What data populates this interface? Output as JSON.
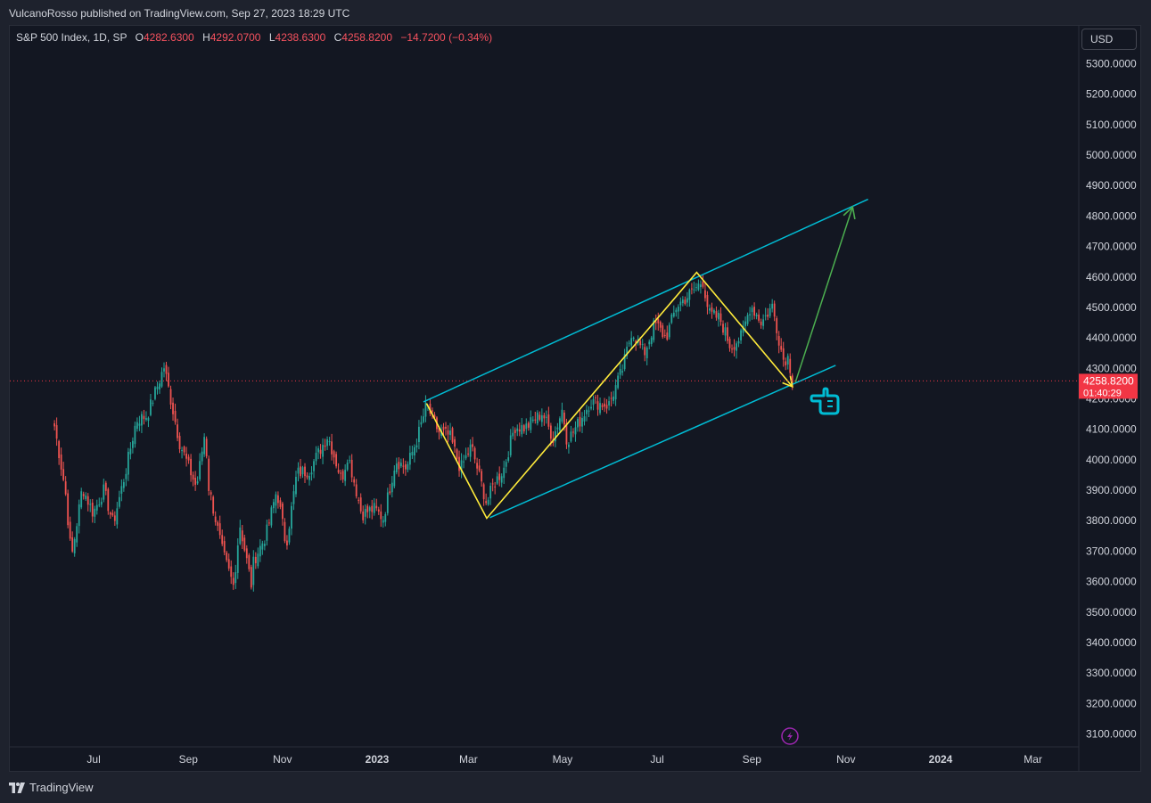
{
  "header": {
    "publish_line": "VulcanoRosso published on TradingView.com, Sep 27, 2023 18:29 UTC"
  },
  "legend": {
    "symbol": "S&P 500 Index, 1D, SP",
    "o_label": "O",
    "o_value": "4282.6300",
    "h_label": "H",
    "h_value": "4292.0700",
    "l_label": "L",
    "l_value": "4238.6300",
    "c_label": "C",
    "c_value": "4258.8200",
    "change": "−14.7200 (−0.34%)"
  },
  "currency": "USD",
  "footer": {
    "brand": "TradingView"
  },
  "colors": {
    "up": "#26a69a",
    "down": "#ef5350",
    "channel": "#00bcd4",
    "zigzag": "#ffeb3b",
    "projection": "#4caf50",
    "price_tag": "#f23645",
    "hand_icon": "#00bcd4",
    "flash_icon": "#9c27b0"
  },
  "icons": [
    "hand-pointing-icon",
    "flash-icon",
    "tradingview-logo-icon"
  ],
  "chart_data": {
    "type": "candlestick",
    "title": "S&P 500 Index, 1D, SP",
    "y_range": [
      3050,
      5350
    ],
    "y_ticks": [
      "5300.0000",
      "5200.0000",
      "5100.0000",
      "5000.0000",
      "4900.0000",
      "4800.0000",
      "4700.0000",
      "4600.0000",
      "4500.0000",
      "4400.0000",
      "4300.0000",
      "4200.0000",
      "4100.0000",
      "4000.0000",
      "3900.0000",
      "3800.0000",
      "3700.0000",
      "3600.0000",
      "3500.0000",
      "3400.0000",
      "3300.0000",
      "3200.0000",
      "3100.0000"
    ],
    "x_ticks": [
      {
        "label": "Jul",
        "t": 2022.497
      },
      {
        "label": "Sep",
        "t": 2022.665
      },
      {
        "label": "Nov",
        "t": 2022.832
      },
      {
        "label": "2023",
        "t": 2023.0
      },
      {
        "label": "Mar",
        "t": 2023.162
      },
      {
        "label": "May",
        "t": 2023.329
      },
      {
        "label": "Jul",
        "t": 2023.497
      },
      {
        "label": "Sep",
        "t": 2023.665
      },
      {
        "label": "Nov",
        "t": 2023.832
      },
      {
        "label": "2024",
        "t": 2024.0
      },
      {
        "label": "Mar",
        "t": 2024.164
      }
    ],
    "last_price": {
      "value": 4258.82,
      "label": "4258.8200",
      "countdown": "01:40:29"
    },
    "close_path": [
      [
        "2022-06-06",
        4110
      ],
      [
        "2022-06-13",
        3900
      ],
      [
        "2022-06-17",
        3675
      ],
      [
        "2022-06-24",
        3910
      ],
      [
        "2022-07-01",
        3825
      ],
      [
        "2022-07-08",
        3900
      ],
      [
        "2022-07-14",
        3790
      ],
      [
        "2022-07-22",
        3960
      ],
      [
        "2022-07-29",
        4130
      ],
      [
        "2022-08-05",
        4145
      ],
      [
        "2022-08-16",
        4305
      ],
      [
        "2022-08-26",
        4057
      ],
      [
        "2022-09-06",
        3908
      ],
      [
        "2022-09-12",
        4110
      ],
      [
        "2022-09-13",
        3932
      ],
      [
        "2022-09-23",
        3693
      ],
      [
        "2022-09-30",
        3585
      ],
      [
        "2022-10-04",
        3790
      ],
      [
        "2022-10-12",
        3577
      ],
      [
        "2022-10-13",
        3669
      ],
      [
        "2022-10-21",
        3752
      ],
      [
        "2022-10-28",
        3901
      ],
      [
        "2022-11-03",
        3719
      ],
      [
        "2022-11-10",
        3956
      ],
      [
        "2022-11-18",
        3965
      ],
      [
        "2022-11-30",
        4080
      ],
      [
        "2022-12-09",
        3934
      ],
      [
        "2022-12-13",
        4019
      ],
      [
        "2022-12-22",
        3822
      ],
      [
        "2022-12-30",
        3839
      ],
      [
        "2023-01-05",
        3808
      ],
      [
        "2023-01-13",
        3999
      ],
      [
        "2023-01-20",
        3972
      ],
      [
        "2023-01-27",
        4070
      ],
      [
        "2023-02-02",
        4179
      ],
      [
        "2023-02-10",
        4090
      ],
      [
        "2023-02-17",
        4079
      ],
      [
        "2023-02-24",
        3970
      ],
      [
        "2023-03-03",
        4045
      ],
      [
        "2023-03-13",
        3855
      ],
      [
        "2023-03-17",
        3916
      ],
      [
        "2023-03-24",
        3970
      ],
      [
        "2023-03-31",
        4109
      ],
      [
        "2023-04-07",
        4105
      ],
      [
        "2023-04-18",
        4154
      ],
      [
        "2023-04-25",
        4071
      ],
      [
        "2023-05-01",
        4167
      ],
      [
        "2023-05-04",
        4061
      ],
      [
        "2023-05-12",
        4124
      ],
      [
        "2023-05-19",
        4191
      ],
      [
        "2023-05-31",
        4179
      ],
      [
        "2023-06-09",
        4298
      ],
      [
        "2023-06-15",
        4425
      ],
      [
        "2023-06-23",
        4348
      ],
      [
        "2023-06-30",
        4450
      ],
      [
        "2023-07-07",
        4398
      ],
      [
        "2023-07-14",
        4505
      ],
      [
        "2023-07-21",
        4536
      ],
      [
        "2023-07-31",
        4588
      ],
      [
        "2023-08-04",
        4478
      ],
      [
        "2023-08-11",
        4464
      ],
      [
        "2023-08-18",
        4370
      ],
      [
        "2023-08-25",
        4405
      ],
      [
        "2023-08-31",
        4508
      ],
      [
        "2023-09-07",
        4451
      ],
      [
        "2023-09-14",
        4505
      ],
      [
        "2023-09-21",
        4330
      ],
      [
        "2023-09-25",
        4337
      ],
      [
        "2023-09-26",
        4273
      ],
      [
        "2023-09-27",
        4258.82
      ]
    ],
    "drawings": {
      "channel_upper": [
        [
          "2023-01-31",
          4190
        ],
        [
          "2023-11-15",
          4855
        ]
      ],
      "channel_lower": [
        [
          "2023-03-15",
          3810
        ],
        [
          "2023-10-25",
          4310
        ]
      ],
      "zigzag": [
        [
          "2023-02-02",
          4185
        ],
        [
          "2023-03-13",
          3808
        ],
        [
          "2023-07-27",
          4615
        ],
        [
          "2023-09-27",
          4240
        ]
      ],
      "projection": [
        [
          "2023-09-29",
          4255
        ],
        [
          "2023-11-05",
          4830
        ]
      ]
    }
  }
}
